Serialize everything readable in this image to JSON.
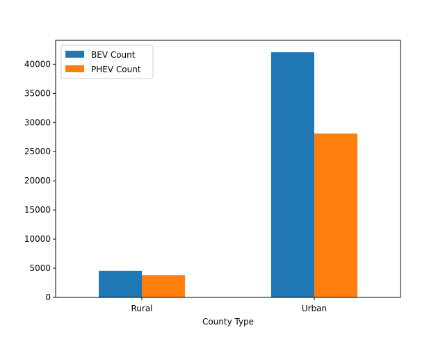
{
  "chart_data": {
    "type": "bar",
    "title": "",
    "xlabel": "County Type",
    "ylabel": "",
    "categories": [
      "Rural",
      "Urban"
    ],
    "series": [
      {
        "name": "BEV Count",
        "color": "#1f77b4",
        "values": [
          4550,
          42050
        ]
      },
      {
        "name": "PHEV Count",
        "color": "#ff7f0e",
        "values": [
          3800,
          28100
        ]
      }
    ],
    "ylim": [
      0,
      44100
    ],
    "yticks": [
      0,
      5000,
      10000,
      15000,
      20000,
      25000,
      30000,
      35000,
      40000
    ],
    "grid": false,
    "legend_position": "upper-left"
  }
}
